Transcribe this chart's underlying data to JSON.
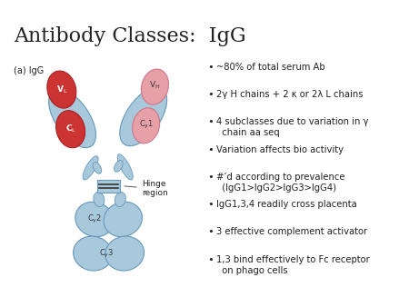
{
  "title": "Antibody Classes:  IgG",
  "title_fontsize": 16,
  "background_color": "#ffffff",
  "label_igg": "(a) IgG",
  "hinge_label": "Hinge\nregion",
  "bullet_points": [
    "~80% of total serum Ab",
    "2γ H chains + 2 κ or 2λ L chains",
    "4 subclasses due to variation in γ\n  chain aa seq",
    "Variation affects bio activity",
    "#’d according to prevalence\n  (IgG1>IgG2>IgG3>IgG4)",
    "IgG1,3,4 readily cross placenta",
    "3 effective complement activator",
    "1,3 bind effectively to Fc receptor\n  on phago cells"
  ],
  "color_light_blue": "#a8c8dc",
  "color_pink": "#e8a0a8",
  "color_red": "#cc3333",
  "color_red_dark": "#aa2222",
  "color_blue_edge": "#6699bb",
  "color_text": "#222222"
}
